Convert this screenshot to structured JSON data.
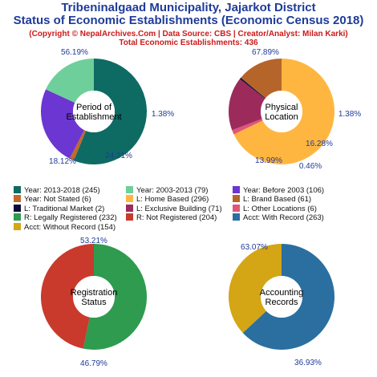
{
  "title": {
    "line1": "Tribeninalgaad Municipality, Jajarkot District",
    "line2": "Status of Economic Establishments (Economic Census 2018)",
    "copyright": "(Copyright © NepalArchives.Com | Data Source: CBS | Creator/Analyst: Milan Karki)",
    "total": "Total Economic Establishments: 436"
  },
  "chart_data": [
    {
      "type": "pie",
      "center_label": [
        "Period of",
        "Establishment"
      ],
      "slices": [
        {
          "label": "Year: 2013-2018",
          "value": 245,
          "percent_label": "56.19%",
          "color": "#0e6b63"
        },
        {
          "label": "Year: Not Stated",
          "value": 6,
          "percent_label": "1.38%",
          "color": "#c2692b"
        },
        {
          "label": "Year: Before 2003",
          "value": 106,
          "percent_label": "24.31%",
          "color": "#6b36d1"
        },
        {
          "label": "Year: 2003-2013",
          "value": 79,
          "percent_label": "18.12%",
          "color": "#6fcf9b"
        }
      ]
    },
    {
      "type": "pie",
      "center_label": [
        "Physical",
        "Location"
      ],
      "slices": [
        {
          "label": "L: Home Based",
          "value": 296,
          "percent_label": "67.89%",
          "color": "#ffb640"
        },
        {
          "label": "L: Other Locations",
          "value": 6,
          "percent_label": "1.38%",
          "color": "#e0557a"
        },
        {
          "label": "L: Exclusive Building",
          "value": 71,
          "percent_label": "16.28%",
          "color": "#9c2b5c"
        },
        {
          "label": "L: Traditional Market",
          "value": 2,
          "percent_label": "0.46%",
          "color": "#0a0a3a"
        },
        {
          "label": "L: Brand Based",
          "value": 61,
          "percent_label": "13.99%",
          "color": "#b5652a"
        }
      ]
    },
    {
      "type": "pie",
      "center_label": [
        "Registration",
        "Status"
      ],
      "slices": [
        {
          "label": "R: Legally Registered",
          "value": 232,
          "percent_label": "53.21%",
          "color": "#2e9b4f"
        },
        {
          "label": "R: Not Registered",
          "value": 204,
          "percent_label": "46.79%",
          "color": "#c93a2c"
        }
      ]
    },
    {
      "type": "pie",
      "center_label": [
        "Accounting",
        "Records"
      ],
      "slices": [
        {
          "label": "Acct: With Record",
          "value": 263,
          "percent_label": "63.07%",
          "color": "#2a6fa0"
        },
        {
          "label": "Acct: Without Record",
          "value": 154,
          "percent_label": "36.93%",
          "color": "#d4a515"
        }
      ]
    }
  ],
  "legend": [
    [
      {
        "text": "Year: 2013-2018 (245)",
        "color": "#0e6b63"
      },
      {
        "text": "Year: 2003-2013 (79)",
        "color": "#6fcf9b"
      },
      {
        "text": "Year: Before 2003 (106)",
        "color": "#6b36d1"
      }
    ],
    [
      {
        "text": "Year: Not Stated (6)",
        "color": "#c2692b"
      },
      {
        "text": "L: Home Based (296)",
        "color": "#ffb640"
      },
      {
        "text": "L: Brand Based (61)",
        "color": "#b5652a"
      }
    ],
    [
      {
        "text": "L: Traditional Market (2)",
        "color": "#0a0a3a"
      },
      {
        "text": "L: Exclusive Building (71)",
        "color": "#9c2b5c"
      },
      {
        "text": "L: Other Locations (6)",
        "color": "#e0557a"
      }
    ],
    [
      {
        "text": "R: Legally Registered (232)",
        "color": "#2e9b4f"
      },
      {
        "text": "R: Not Registered (204)",
        "color": "#c93a2c"
      },
      {
        "text": "Acct: With Record (263)",
        "color": "#2a6fa0"
      }
    ],
    [
      {
        "text": "Acct: Without Record (154)",
        "color": "#d4a515"
      }
    ]
  ]
}
